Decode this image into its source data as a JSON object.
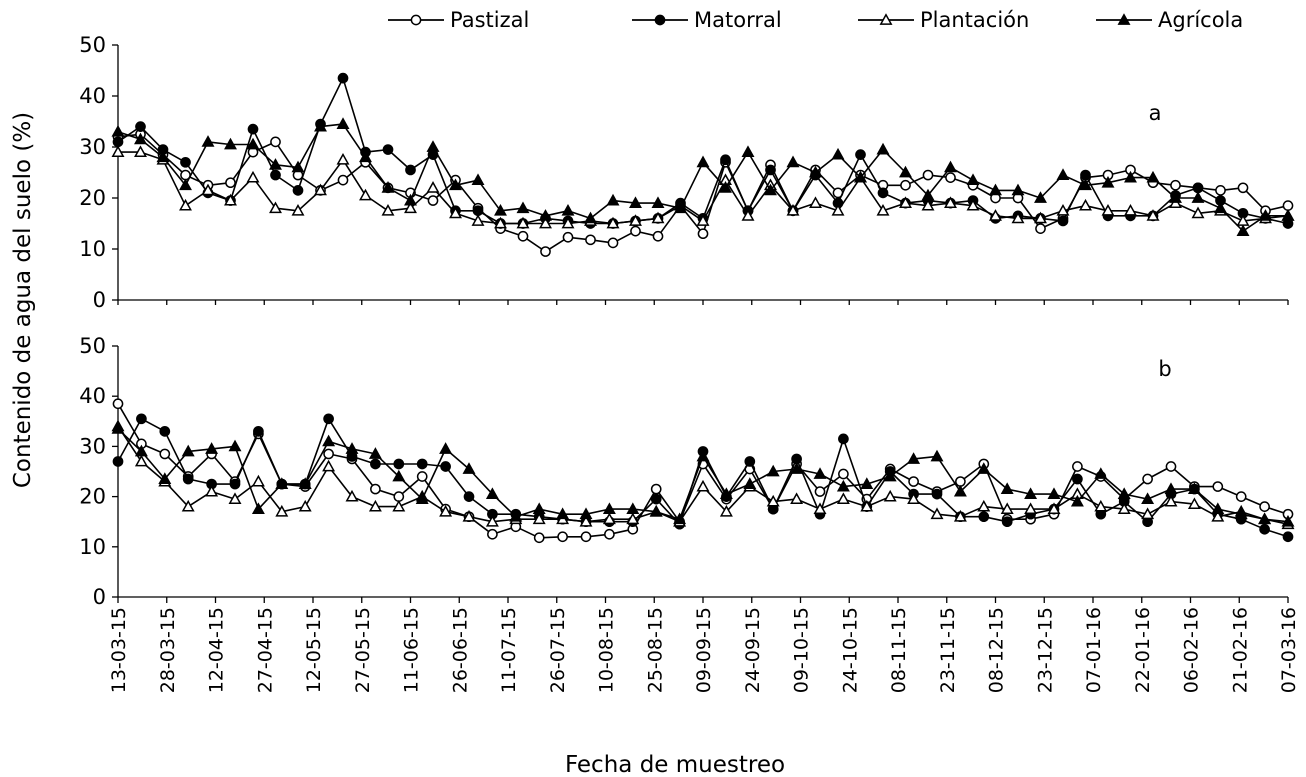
{
  "chart_data": {
    "type": "line",
    "ylabel": "Contenido de agua del suelo (%)",
    "xlabel": "Fecha de muestreo",
    "ylim": [
      0,
      50
    ],
    "yticks": [
      "0",
      "10",
      "20",
      "30",
      "40",
      "50"
    ],
    "legend_position": "top",
    "series_names": [
      "Pastizal",
      "Matorral",
      "Plantación",
      "Agrícola"
    ],
    "markers": [
      "open-circle",
      "filled-circle",
      "open-triangle",
      "filled-triangle"
    ],
    "x_ticks": [
      {
        "i": 0,
        "label": "13-03-15"
      },
      {
        "i": 3,
        "label": "28-03-15"
      },
      {
        "i": 6,
        "label": "12-04-15"
      },
      {
        "i": 9,
        "label": "27-04-15"
      },
      {
        "i": 12,
        "label": "12-05-15"
      },
      {
        "i": 15,
        "label": "27-05-15"
      },
      {
        "i": 18,
        "label": "11-06-15"
      },
      {
        "i": 21,
        "label": "26-06-15"
      },
      {
        "i": 24,
        "label": "11-07-15"
      },
      {
        "i": 27,
        "label": "26-07-15"
      },
      {
        "i": 30,
        "label": "10-08-15"
      },
      {
        "i": 33,
        "label": "25-08-15"
      },
      {
        "i": 36,
        "label": "09-09-15"
      },
      {
        "i": 39,
        "label": "24-09-15"
      },
      {
        "i": 42,
        "label": "09-10-15"
      },
      {
        "i": 45,
        "label": "24-10-15"
      },
      {
        "i": 48,
        "label": "08-11-15"
      },
      {
        "i": 51,
        "label": "23-11-15"
      },
      {
        "i": 54,
        "label": "08-12-15"
      },
      {
        "i": 57,
        "label": "23-12-15"
      },
      {
        "i": 60,
        "label": "07-01-16"
      },
      {
        "i": 63,
        "label": "22-01-16"
      },
      {
        "i": 66,
        "label": "06-02-16"
      },
      {
        "i": 69,
        "label": "21-02-16"
      },
      {
        "i": 72,
        "label": "07-03-16"
      }
    ],
    "panels": [
      {
        "label": "a",
        "series": [
          {
            "name": "Pastizal",
            "values": [
              32,
              32.5,
              28.5,
              24.5,
              22.5,
              23,
              29,
              31,
              24.5,
              21.5,
              23.5,
              27,
              22,
              21,
              19.5,
              23.5,
              18,
              14,
              12.5,
              9.5,
              12.3,
              11.8,
              11.2,
              13.5,
              12.5,
              18.5,
              13,
              27,
              17.5,
              26.5,
              17.5,
              25.5,
              21,
              24.5,
              22.5,
              22.5,
              24.5,
              24,
              22.5,
              20,
              20,
              14,
              16,
              24,
              24.5,
              25.5,
              23,
              22.5,
              22,
              21.5,
              22,
              17.5,
              18.5
            ]
          },
          {
            "name": "Matorral",
            "values": [
              31,
              34,
              29.5,
              27,
              21,
              19.5,
              33.5,
              24.5,
              21.5,
              34.5,
              43.5,
              29,
              29.5,
              25.5,
              28.5,
              17.5,
              17.5,
              15,
              15,
              16,
              15.5,
              15,
              15,
              15.5,
              16,
              19,
              16,
              27.5,
              17.5,
              25.5,
              17.5,
              24.5,
              19,
              28.5,
              21,
              19,
              19.5,
              19,
              19.5,
              16,
              16.5,
              16,
              15.5,
              24.5,
              16.5,
              16.5,
              16.5,
              20.5,
              22,
              19.5,
              17,
              16,
              15
            ]
          },
          {
            "name": "Plantación",
            "values": [
              29,
              29,
              27.5,
              18.5,
              21.5,
              19.5,
              24,
              18,
              17.5,
              21.5,
              27.5,
              20.5,
              17.5,
              18,
              22,
              17,
              15.5,
              15,
              15,
              15,
              15,
              15.5,
              15,
              15.5,
              16,
              18.5,
              15.5,
              23.5,
              16.5,
              22.5,
              17.5,
              19,
              17.5,
              24,
              17.5,
              19,
              18.5,
              19,
              18.5,
              16.5,
              16,
              16,
              17.5,
              18.5,
              17.5,
              17.5,
              16.5,
              19,
              17,
              17.5,
              15.5,
              16,
              16.5
            ]
          },
          {
            "name": "Agrícola",
            "values": [
              33,
              31.5,
              28,
              22.5,
              31,
              30.5,
              30.5,
              26.5,
              26,
              34,
              34.5,
              28,
              22,
              19.5,
              30,
              22.5,
              23.5,
              17.5,
              18,
              16.5,
              17.5,
              16,
              19.5,
              19,
              19,
              18,
              27,
              22,
              29,
              21.5,
              27,
              25,
              28.5,
              24,
              29.5,
              25,
              20.5,
              26,
              23.5,
              21.5,
              21.5,
              20,
              24.5,
              22.5,
              23,
              24,
              24,
              20,
              20,
              18,
              13.5,
              16.5,
              16.5
            ]
          }
        ]
      },
      {
        "label": "b",
        "series": [
          {
            "name": "Pastizal",
            "values": [
              38.5,
              30.5,
              28.5,
              24,
              28.5,
              23,
              32.5,
              22.5,
              22,
              28.5,
              27.5,
              21.5,
              20,
              24,
              17.5,
              16,
              12.5,
              14,
              11.8,
              12,
              12,
              12.5,
              13.5,
              21.5,
              15,
              26.5,
              19.5,
              25.5,
              17.5,
              26.5,
              21,
              24.5,
              19.5,
              25.5,
              23,
              21,
              23,
              26.5,
              15.5,
              15.5,
              16.5,
              26,
              24,
              19.5,
              23.5,
              26,
              22,
              22,
              20,
              18,
              16.5
            ]
          },
          {
            "name": "Matorral",
            "values": [
              27,
              35.5,
              33,
              23.5,
              22.5,
              22.5,
              33,
              22.5,
              22.5,
              35.5,
              28,
              26.5,
              26.5,
              26.5,
              26,
              20,
              16.5,
              16.5,
              16,
              15.5,
              15,
              15,
              15,
              19.5,
              14.5,
              29,
              20,
              27,
              17.5,
              27.5,
              16.5,
              31.5,
              18,
              25,
              20.5,
              20.5,
              16,
              16,
              15,
              16.5,
              17.5,
              23.5,
              16.5,
              19,
              15,
              20.5,
              21.5,
              16.5,
              15.5,
              13.5,
              12
            ]
          },
          {
            "name": "Plantación",
            "values": [
              34,
              27,
              23,
              18,
              21,
              19.5,
              23,
              17,
              18,
              26,
              20,
              18,
              18,
              20,
              17,
              16,
              15,
              15.5,
              15.5,
              15.5,
              15,
              15.5,
              15.5,
              17,
              15,
              22,
              17,
              22,
              19,
              19.5,
              17.5,
              19.5,
              18,
              20,
              19.5,
              16.5,
              16,
              18,
              17.5,
              17.5,
              17.5,
              20.5,
              18,
              17.5,
              16.5,
              19,
              18.5,
              16,
              17,
              15.5,
              14.5
            ]
          },
          {
            "name": "Agrícola",
            "values": [
              33.5,
              29,
              23.5,
              29,
              29.5,
              30,
              17.5,
              22.5,
              22.5,
              31,
              29.5,
              28.5,
              24,
              19.5,
              29.5,
              25.5,
              20.5,
              16,
              17.5,
              16.5,
              16.5,
              17.5,
              17.5,
              17,
              15.5,
              28,
              20.5,
              22.5,
              25,
              25.5,
              24.5,
              22,
              22.5,
              24,
              27.5,
              28,
              21,
              25.5,
              21.5,
              20.5,
              20.5,
              19,
              24.5,
              20.5,
              19.5,
              21.5,
              21.5,
              17.5,
              16.5,
              15.5,
              15
            ]
          }
        ]
      }
    ]
  }
}
